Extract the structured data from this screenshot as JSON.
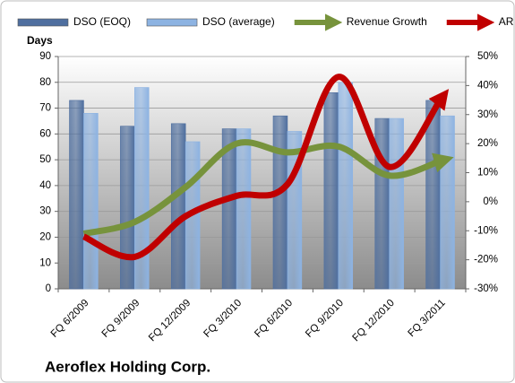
{
  "chart_data": {
    "type": "bar-line",
    "title": "Aeroflex Holding Corp.",
    "y_label": "Days",
    "categories": [
      "FQ 6/2009",
      "FQ 9/2009",
      "FQ 12/2009",
      "FQ 3/2010",
      "FQ 6/2010",
      "FQ 9/2010",
      "FQ 12/2010",
      "FQ 3/2011"
    ],
    "series": [
      {
        "name": "DSO (EOQ)",
        "color": "#4f6f9f",
        "type": "bar",
        "values": [
          73,
          63,
          64,
          62,
          67,
          76,
          66,
          73
        ]
      },
      {
        "name": "DSO (average)",
        "color": "#8db3e2",
        "type": "bar",
        "values": [
          68,
          78,
          57,
          62,
          61,
          80,
          66,
          67
        ]
      },
      {
        "name": "Revenue Growth",
        "color": "#77933c",
        "type": "line",
        "axis": "y2",
        "values": [
          -11,
          -7,
          5,
          20,
          17,
          19,
          9,
          14
        ]
      },
      {
        "name": "AR Growth",
        "color": "#c00000",
        "type": "line",
        "axis": "y2",
        "values": [
          -12,
          -19,
          -5,
          2,
          6,
          43,
          12,
          35
        ]
      }
    ],
    "ylim": [
      0,
      90
    ],
    "yticks": [
      0,
      10,
      20,
      30,
      40,
      50,
      60,
      70,
      80,
      90
    ],
    "y2lim": [
      -30,
      50
    ],
    "y2ticks": [
      {
        "value": -30,
        "label": "-30%"
      },
      {
        "value": -20,
        "label": "-20%"
      },
      {
        "value": -10,
        "label": "-10%"
      },
      {
        "value": 0,
        "label": "0%"
      },
      {
        "value": 10,
        "label": "10%"
      },
      {
        "value": 20,
        "label": "20%"
      },
      {
        "value": 30,
        "label": "30%"
      },
      {
        "value": 40,
        "label": "40%"
      },
      {
        "value": 50,
        "label": "50%"
      }
    ],
    "grid": true
  }
}
